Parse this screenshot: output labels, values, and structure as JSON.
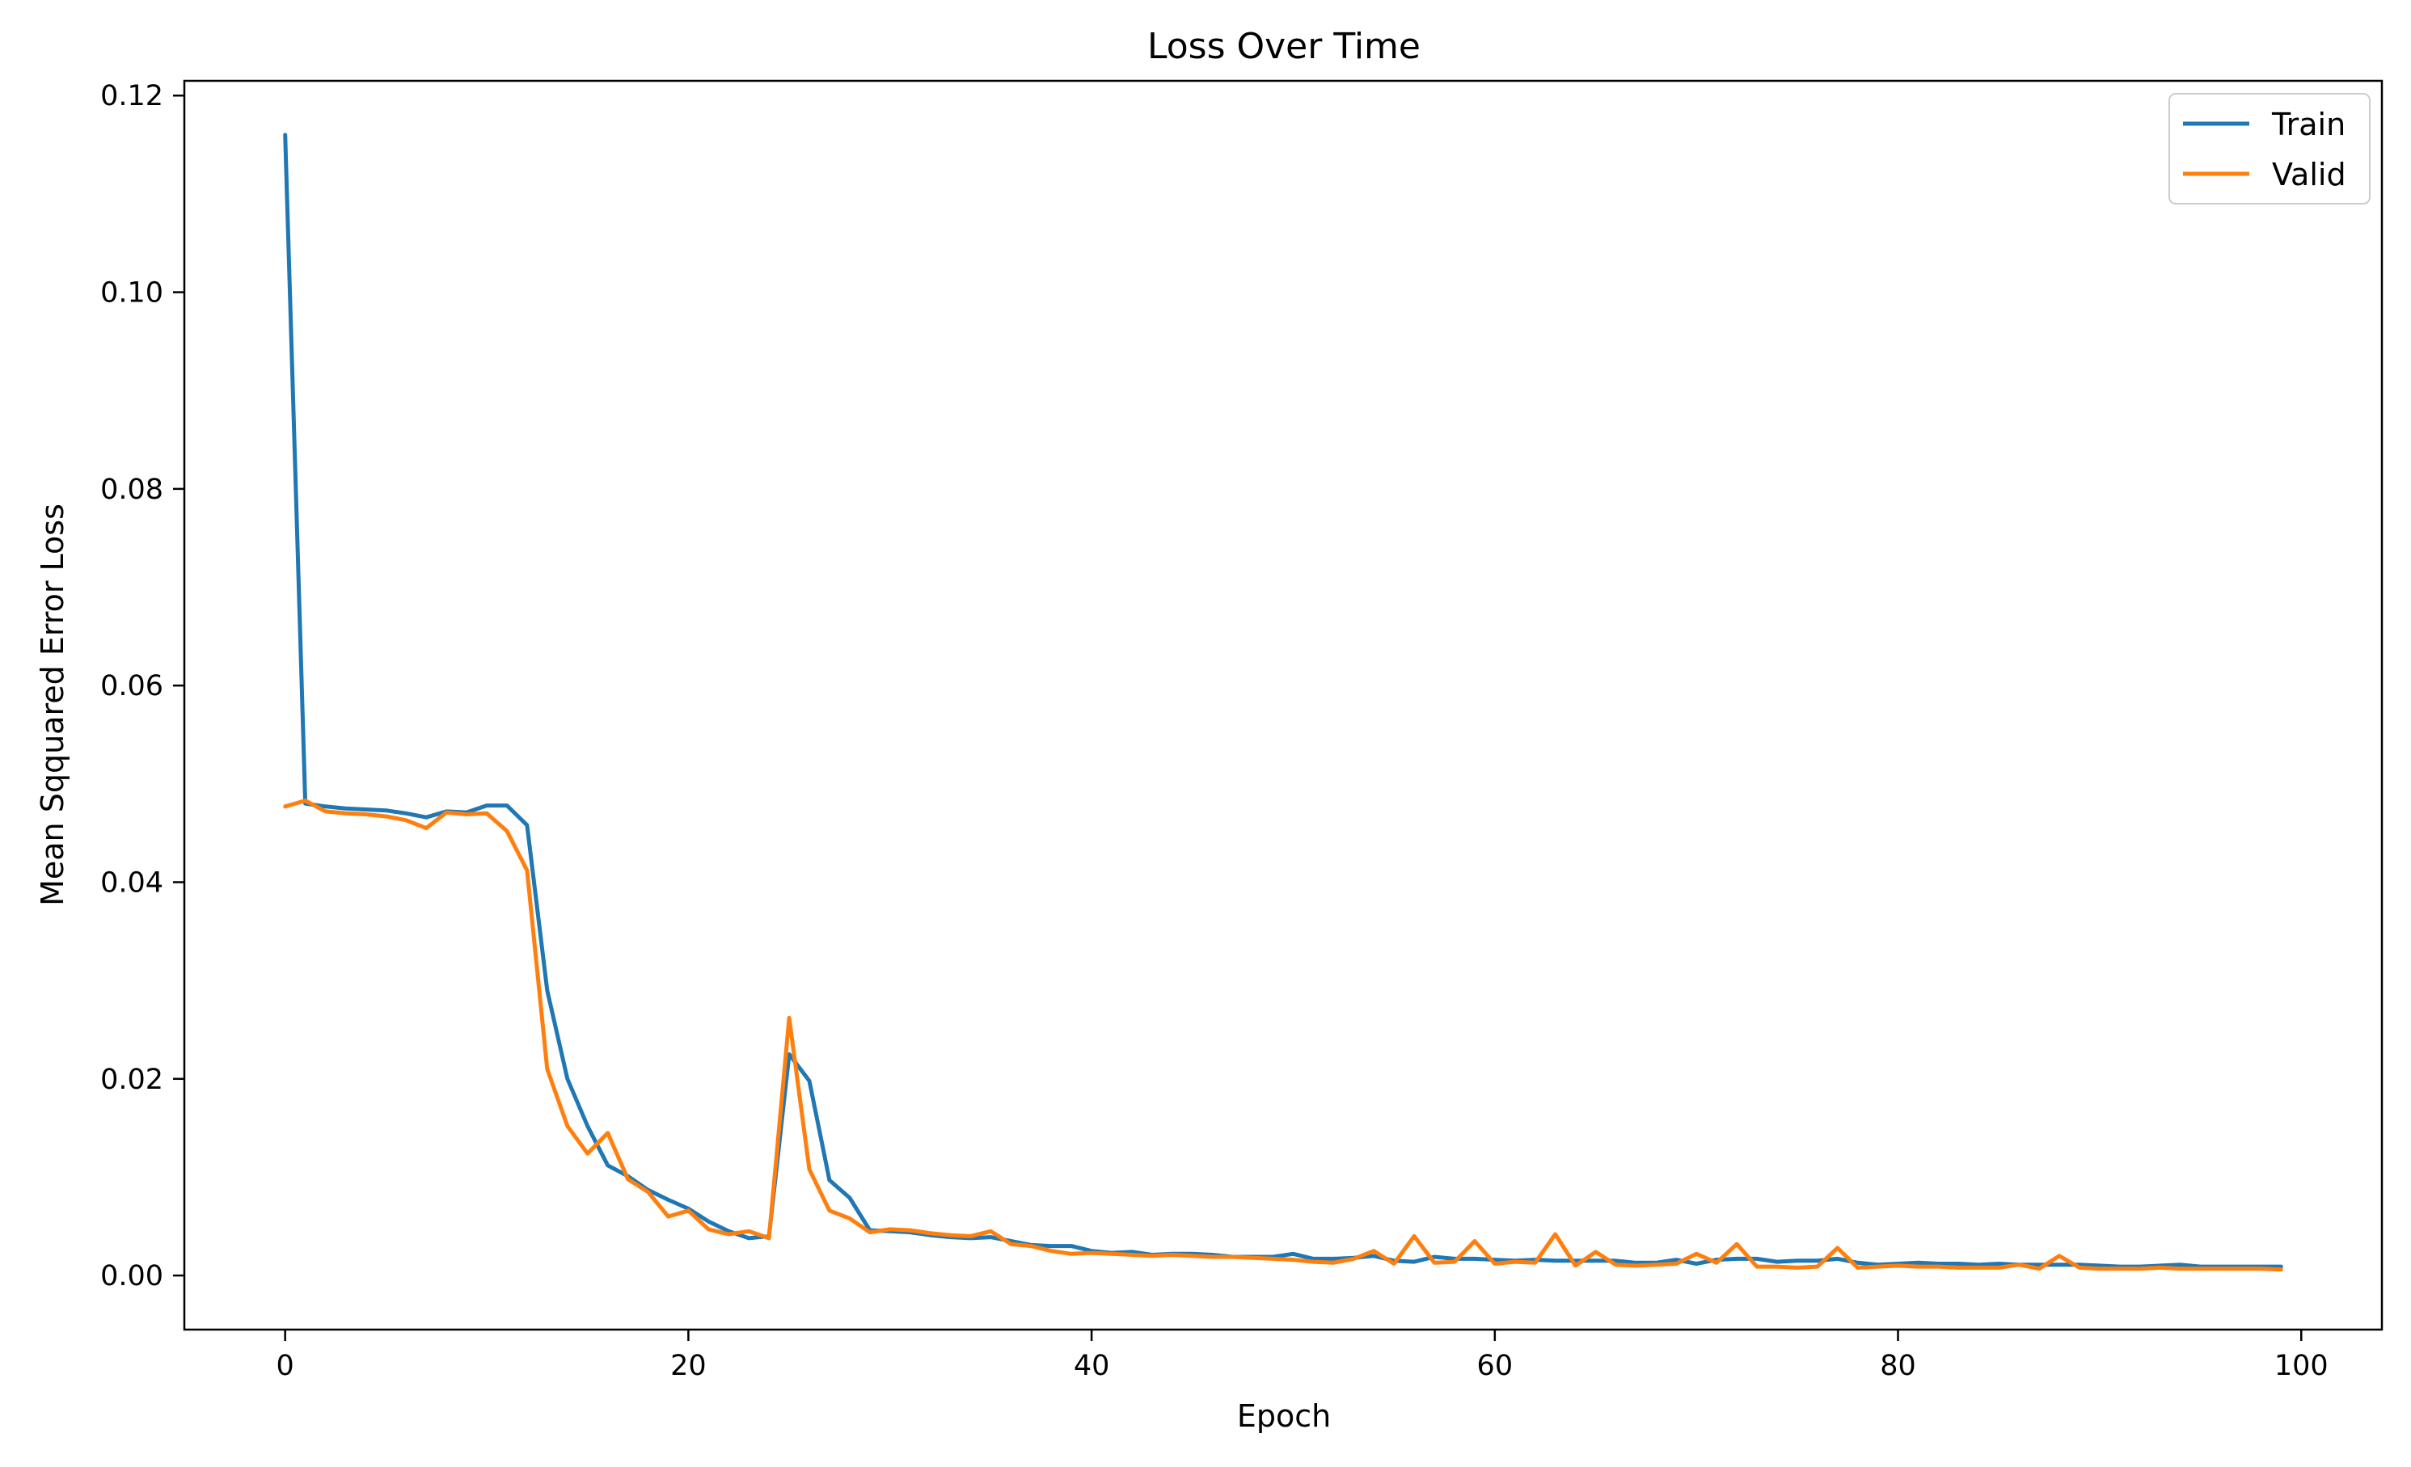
{
  "chart_data": {
    "type": "line",
    "title": "Loss Over Time",
    "xlabel": "Epoch",
    "ylabel": "Mean Sqquared Error Loss",
    "xlim": [
      -5,
      104
    ],
    "ylim": [
      -0.0055,
      0.1215
    ],
    "xticks": [
      0,
      20,
      40,
      60,
      80,
      100
    ],
    "yticks": [
      0.0,
      0.02,
      0.04,
      0.06,
      0.08,
      0.1,
      0.12
    ],
    "xtick_labels": [
      "0",
      "20",
      "40",
      "60",
      "80",
      "100"
    ],
    "ytick_labels": [
      "0.00",
      "0.02",
      "0.04",
      "0.06",
      "0.08",
      "0.10",
      "0.12"
    ],
    "grid": false,
    "legend_position": "top-right",
    "series": [
      {
        "name": "Train",
        "color": "#1f77b4",
        "values": [
          0.116,
          0.048,
          0.0477,
          0.0475,
          0.0474,
          0.0473,
          0.047,
          0.0466,
          0.0472,
          0.0471,
          0.0478,
          0.0478,
          0.0458,
          0.029,
          0.02,
          0.0152,
          0.0112,
          0.0101,
          0.0087,
          0.0077,
          0.0068,
          0.0055,
          0.0045,
          0.0038,
          0.004,
          0.0225,
          0.0198,
          0.0097,
          0.0079,
          0.0046,
          0.0045,
          0.0044,
          0.0041,
          0.0039,
          0.0038,
          0.0039,
          0.0035,
          0.0031,
          0.003,
          0.003,
          0.0025,
          0.0023,
          0.0024,
          0.0021,
          0.0022,
          0.0022,
          0.0021,
          0.0019,
          0.0019,
          0.0019,
          0.0022,
          0.0017,
          0.0017,
          0.0018,
          0.002,
          0.0015,
          0.0014,
          0.0019,
          0.0017,
          0.0017,
          0.0016,
          0.0015,
          0.0016,
          0.0015,
          0.0015,
          0.0015,
          0.0015,
          0.0013,
          0.0013,
          0.0016,
          0.0012,
          0.0016,
          0.0017,
          0.0017,
          0.0014,
          0.0015,
          0.0015,
          0.0017,
          0.0013,
          0.0011,
          0.0012,
          0.0013,
          0.0012,
          0.0012,
          0.0011,
          0.0012,
          0.0011,
          0.0011,
          0.0011,
          0.0011,
          0.001,
          0.0009,
          0.0009,
          0.001,
          0.0011,
          0.0009,
          0.0009,
          0.0009,
          0.0009,
          0.0009
        ]
      },
      {
        "name": "Valid",
        "color": "#ff7f0e",
        "values": [
          0.0477,
          0.0483,
          0.0472,
          0.047,
          0.0469,
          0.0467,
          0.0463,
          0.0455,
          0.0471,
          0.0469,
          0.047,
          0.0452,
          0.0412,
          0.021,
          0.0152,
          0.0124,
          0.0145,
          0.0098,
          0.0085,
          0.006,
          0.0066,
          0.0047,
          0.0042,
          0.0045,
          0.0038,
          0.0262,
          0.0108,
          0.0066,
          0.0058,
          0.0044,
          0.0047,
          0.0046,
          0.0043,
          0.0041,
          0.004,
          0.0045,
          0.0032,
          0.003,
          0.0025,
          0.0022,
          0.0023,
          0.0022,
          0.0021,
          0.002,
          0.0021,
          0.002,
          0.0019,
          0.0019,
          0.0018,
          0.0017,
          0.0016,
          0.0014,
          0.0013,
          0.0017,
          0.0025,
          0.0012,
          0.004,
          0.0013,
          0.0014,
          0.0035,
          0.0012,
          0.0014,
          0.0013,
          0.0042,
          0.001,
          0.0024,
          0.0011,
          0.001,
          0.0011,
          0.0012,
          0.0022,
          0.0013,
          0.0032,
          0.0009,
          0.0009,
          0.0008,
          0.0009,
          0.0028,
          0.0008,
          0.0009,
          0.001,
          0.0009,
          0.0009,
          0.0008,
          0.0008,
          0.0008,
          0.0011,
          0.0007,
          0.002,
          0.0008,
          0.0007,
          0.0007,
          0.0007,
          0.0008,
          0.0007,
          0.0007,
          0.0007,
          0.0007,
          0.0007,
          0.0006
        ]
      }
    ]
  }
}
